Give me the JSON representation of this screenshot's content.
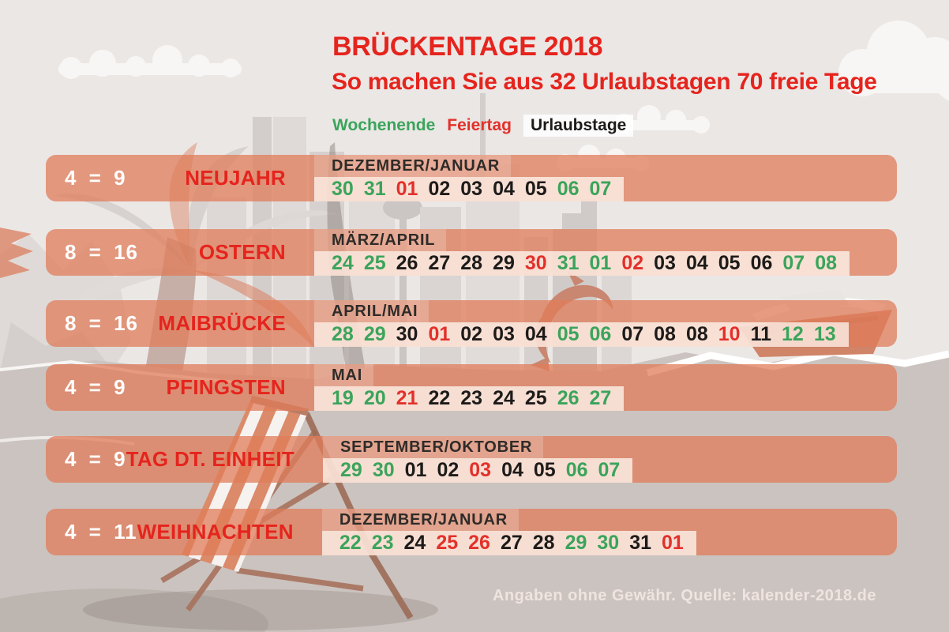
{
  "header": {
    "title": "BRÜCKENTAGE 2018",
    "subtitle": "So machen Sie aus 32 Urlaubstagen 70 freie Tage"
  },
  "legend": {
    "weekend": "Wochenende",
    "holiday": "Feiertag",
    "vacation": "Urlaubstage"
  },
  "colors": {
    "we": "#3BA45B",
    "ft": "#E3302A",
    "ur": "#1D1B19",
    "accent": "#E5241D",
    "band_salmon": "#E5977B",
    "strip_light": "#F8DCCA"
  },
  "rows": [
    {
      "ratio": "4 = 9",
      "name": "NEUJAHR",
      "months": "DEZEMBER/JANUAR",
      "days": [
        {
          "d": "30",
          "t": "we"
        },
        {
          "d": "31",
          "t": "we"
        },
        {
          "d": "01",
          "t": "ft"
        },
        {
          "d": "02",
          "t": "ur"
        },
        {
          "d": "03",
          "t": "ur"
        },
        {
          "d": "04",
          "t": "ur"
        },
        {
          "d": "05",
          "t": "ur"
        },
        {
          "d": "06",
          "t": "we"
        },
        {
          "d": "07",
          "t": "we"
        }
      ]
    },
    {
      "ratio": "8 = 16",
      "name": "OSTERN",
      "months": "MÄRZ/APRIL",
      "days": [
        {
          "d": "24",
          "t": "we"
        },
        {
          "d": "25",
          "t": "we"
        },
        {
          "d": "26",
          "t": "ur"
        },
        {
          "d": "27",
          "t": "ur"
        },
        {
          "d": "28",
          "t": "ur"
        },
        {
          "d": "29",
          "t": "ur"
        },
        {
          "d": "30",
          "t": "ft"
        },
        {
          "d": "31",
          "t": "we"
        },
        {
          "d": "01",
          "t": "we"
        },
        {
          "d": "02",
          "t": "ft"
        },
        {
          "d": "03",
          "t": "ur"
        },
        {
          "d": "04",
          "t": "ur"
        },
        {
          "d": "05",
          "t": "ur"
        },
        {
          "d": "06",
          "t": "ur"
        },
        {
          "d": "07",
          "t": "we"
        },
        {
          "d": "08",
          "t": "we"
        }
      ]
    },
    {
      "ratio": "8 = 16",
      "name": "MAIBRÜCKE",
      "months": "APRIL/MAI",
      "days": [
        {
          "d": "28",
          "t": "we"
        },
        {
          "d": "29",
          "t": "we"
        },
        {
          "d": "30",
          "t": "ur"
        },
        {
          "d": "01",
          "t": "ft"
        },
        {
          "d": "02",
          "t": "ur"
        },
        {
          "d": "03",
          "t": "ur"
        },
        {
          "d": "04",
          "t": "ur"
        },
        {
          "d": "05",
          "t": "we"
        },
        {
          "d": "06",
          "t": "we"
        },
        {
          "d": "07",
          "t": "ur"
        },
        {
          "d": "08",
          "t": "ur"
        },
        {
          "d": "08",
          "t": "ur"
        },
        {
          "d": "10",
          "t": "ft"
        },
        {
          "d": "11",
          "t": "ur"
        },
        {
          "d": "12",
          "t": "we"
        },
        {
          "d": "13",
          "t": "we"
        }
      ]
    },
    {
      "ratio": "4 = 9",
      "name": "PFINGSTEN",
      "months": "MAI",
      "days": [
        {
          "d": "19",
          "t": "we"
        },
        {
          "d": "20",
          "t": "we"
        },
        {
          "d": "21",
          "t": "ft"
        },
        {
          "d": "22",
          "t": "ur"
        },
        {
          "d": "23",
          "t": "ur"
        },
        {
          "d": "24",
          "t": "ur"
        },
        {
          "d": "25",
          "t": "ur"
        },
        {
          "d": "26",
          "t": "we"
        },
        {
          "d": "27",
          "t": "we"
        }
      ]
    },
    {
      "ratio": "4 = 9",
      "name": "TAG DT. EINHEIT",
      "months": "SEPTEMBER/OKTOBER",
      "days": [
        {
          "d": "29",
          "t": "we"
        },
        {
          "d": "30",
          "t": "we"
        },
        {
          "d": "01",
          "t": "ur"
        },
        {
          "d": "02",
          "t": "ur"
        },
        {
          "d": "03",
          "t": "ft"
        },
        {
          "d": "04",
          "t": "ur"
        },
        {
          "d": "05",
          "t": "ur"
        },
        {
          "d": "06",
          "t": "we"
        },
        {
          "d": "07",
          "t": "we"
        }
      ]
    },
    {
      "ratio": "4 = 11",
      "name": "WEIHNACHTEN",
      "months": "DEZEMBER/JANUAR",
      "days": [
        {
          "d": "22",
          "t": "we"
        },
        {
          "d": "23",
          "t": "we"
        },
        {
          "d": "24",
          "t": "ur"
        },
        {
          "d": "25",
          "t": "ft"
        },
        {
          "d": "26",
          "t": "ft"
        },
        {
          "d": "27",
          "t": "ur"
        },
        {
          "d": "28",
          "t": "ur"
        },
        {
          "d": "29",
          "t": "we"
        },
        {
          "d": "30",
          "t": "we"
        },
        {
          "d": "31",
          "t": "ur"
        },
        {
          "d": "01",
          "t": "ft"
        }
      ]
    }
  ],
  "day_type_names": {
    "we": "weekend",
    "ft": "holiday",
    "ur": "vacation"
  },
  "footer": {
    "note": "Angaben ohne Gewähr. Quelle: kalender-2018.de"
  }
}
